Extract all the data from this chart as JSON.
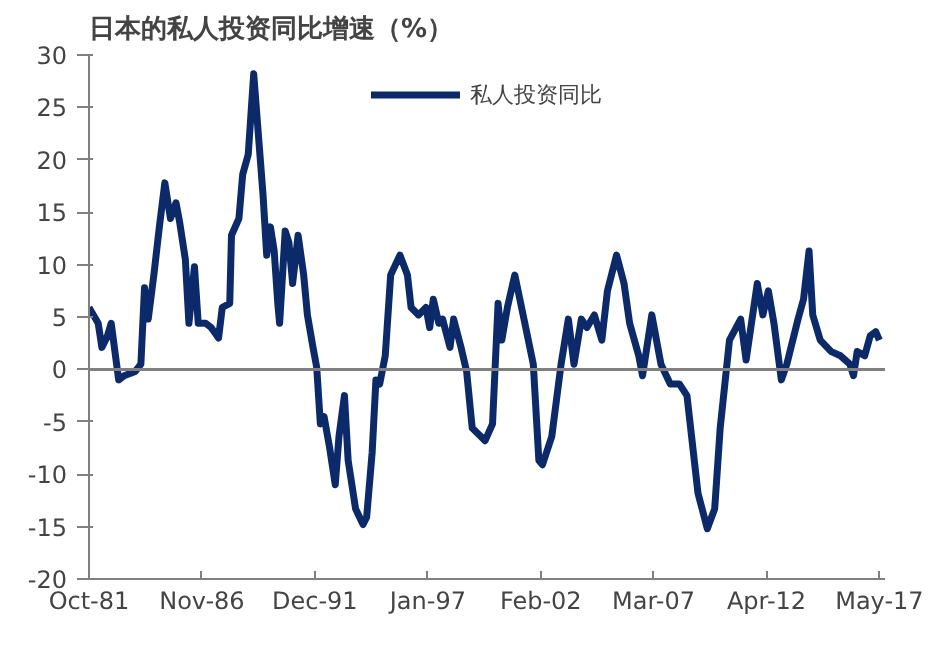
{
  "chart_data": {
    "type": "line",
    "title": "日本的私人投资同比增速（%）",
    "x": [
      "1981-10",
      "1982-03",
      "1982-05",
      "1982-08",
      "1982-10",
      "1983-02",
      "1983-05",
      "1983-11",
      "1984-02",
      "1984-04",
      "1984-06",
      "1984-09",
      "1984-12",
      "1985-03",
      "1985-06",
      "1985-09",
      "1985-11",
      "1986-02",
      "1986-04",
      "1986-07",
      "1986-09",
      "1987-01",
      "1987-04",
      "1987-08",
      "1987-10",
      "1988-02",
      "1988-03",
      "1988-07",
      "1988-09",
      "1988-12",
      "1989-03",
      "1989-05",
      "1989-08",
      "1989-10",
      "1989-12",
      "1990-02",
      "1990-04",
      "1990-05",
      "1990-08",
      "1990-10",
      "1990-12",
      "1991-03",
      "1991-06",
      "1991-08",
      "1991-11",
      "1992-01",
      "1992-03",
      "1992-05",
      "1992-08",
      "1992-11",
      "1993-01",
      "1993-04",
      "1993-06",
      "1993-10",
      "1994-02",
      "1994-04",
      "1994-07",
      "1994-09",
      "1994-11",
      "1995-02",
      "1995-05",
      "1995-10",
      "1996-02",
      "1996-04",
      "1996-08",
      "1996-12",
      "1997-02",
      "1997-04",
      "1997-07",
      "1997-09",
      "1998-01",
      "1998-03",
      "1998-07",
      "1998-10",
      "1999-01",
      "1999-08",
      "1999-12",
      "2000-03",
      "2000-05",
      "2000-08",
      "2000-12",
      "2001-05",
      "2001-10",
      "2002-01",
      "2002-03",
      "2002-08",
      "2003-01",
      "2003-05",
      "2003-08",
      "2003-12",
      "2004-03",
      "2004-07",
      "2004-11",
      "2005-02",
      "2005-07",
      "2005-11",
      "2006-02",
      "2006-07",
      "2006-09",
      "2007-02",
      "2007-07",
      "2007-12",
      "2008-05",
      "2008-09",
      "2009-03",
      "2009-08",
      "2009-12",
      "2010-03",
      "2010-08",
      "2011-02",
      "2011-05",
      "2011-11",
      "2012-02",
      "2012-05",
      "2012-08",
      "2012-12",
      "2013-03",
      "2013-09",
      "2013-12",
      "2014-03",
      "2014-05",
      "2014-09",
      "2015-03",
      "2015-08",
      "2016-01",
      "2016-03",
      "2016-05",
      "2016-09",
      "2016-12",
      "2017-03",
      "2017-05"
    ],
    "series": [
      {
        "name": "私人投资同比",
        "color": "#0c2a6a",
        "values": [
          5.9,
          4.4,
          2.1,
          3.2,
          4.4,
          -1.0,
          -0.6,
          -0.2,
          0.5,
          7.8,
          4.8,
          9,
          13.6,
          17.8,
          14.4,
          15.9,
          14,
          10.5,
          4.4,
          9.8,
          4.4,
          4.4,
          4,
          3,
          5.9,
          6.3,
          12.8,
          14.4,
          18.6,
          20.5,
          28.2,
          23.6,
          16.7,
          10.9,
          13.6,
          11.3,
          6.3,
          4.4,
          13.2,
          12.1,
          8.2,
          12.8,
          9,
          5.2,
          2.1,
          0.2,
          -5.2,
          -4.5,
          -7.5,
          -11,
          -6.4,
          -2.5,
          -8.7,
          -13.3,
          -14.8,
          -14.1,
          -7.9,
          -1,
          -1.4,
          1.3,
          9,
          10.9,
          9,
          5.9,
          5.2,
          5.9,
          4,
          6.7,
          4.4,
          4.8,
          2.1,
          4.8,
          2.1,
          -0.2,
          -5.6,
          -6.8,
          -5.2,
          6.3,
          2.8,
          5.9,
          9,
          4.8,
          0.5,
          -8.7,
          -9.1,
          -6.4,
          0.5,
          4.8,
          0.5,
          4.8,
          4,
          5.2,
          2.8,
          7.5,
          10.9,
          8.2,
          4.4,
          1.3,
          -0.6,
          5.2,
          0.5,
          -1.4,
          -1.4,
          -2.5,
          -11.8,
          -15.2,
          -13.3,
          -5.6,
          2.8,
          4.8,
          0.9,
          8.2,
          5.2,
          7.5,
          4.4,
          -1,
          0.5,
          4.8,
          6.7,
          11.3,
          5.2,
          2.8,
          1.7,
          1.3,
          0.5,
          -0.6,
          1.7,
          1.3,
          3.2,
          3.6,
          2.8
        ]
      }
    ],
    "xlim": [
      "1981-10",
      "2017-08"
    ],
    "xticks": [
      {
        "value": "1981-10",
        "label": "Oct-81"
      },
      {
        "value": "1986-11",
        "label": "Nov-86"
      },
      {
        "value": "1991-12",
        "label": "Dec-91"
      },
      {
        "value": "1997-01",
        "label": "Jan-97"
      },
      {
        "value": "2002-02",
        "label": "Feb-02"
      },
      {
        "value": "2007-03",
        "label": "Mar-07"
      },
      {
        "value": "2012-04",
        "label": "Apr-12"
      },
      {
        "value": "2017-05",
        "label": "May-17"
      }
    ],
    "ylim": [
      -20,
      30
    ],
    "yticks": [
      -20,
      -15,
      -10,
      -5,
      0,
      5,
      10,
      15,
      20,
      25,
      30
    ],
    "ref_lines": [
      {
        "axis": "y",
        "value": 0,
        "color": "#808080"
      }
    ],
    "legend": "top",
    "grid": false,
    "line_style": "solid",
    "marker": "none"
  }
}
